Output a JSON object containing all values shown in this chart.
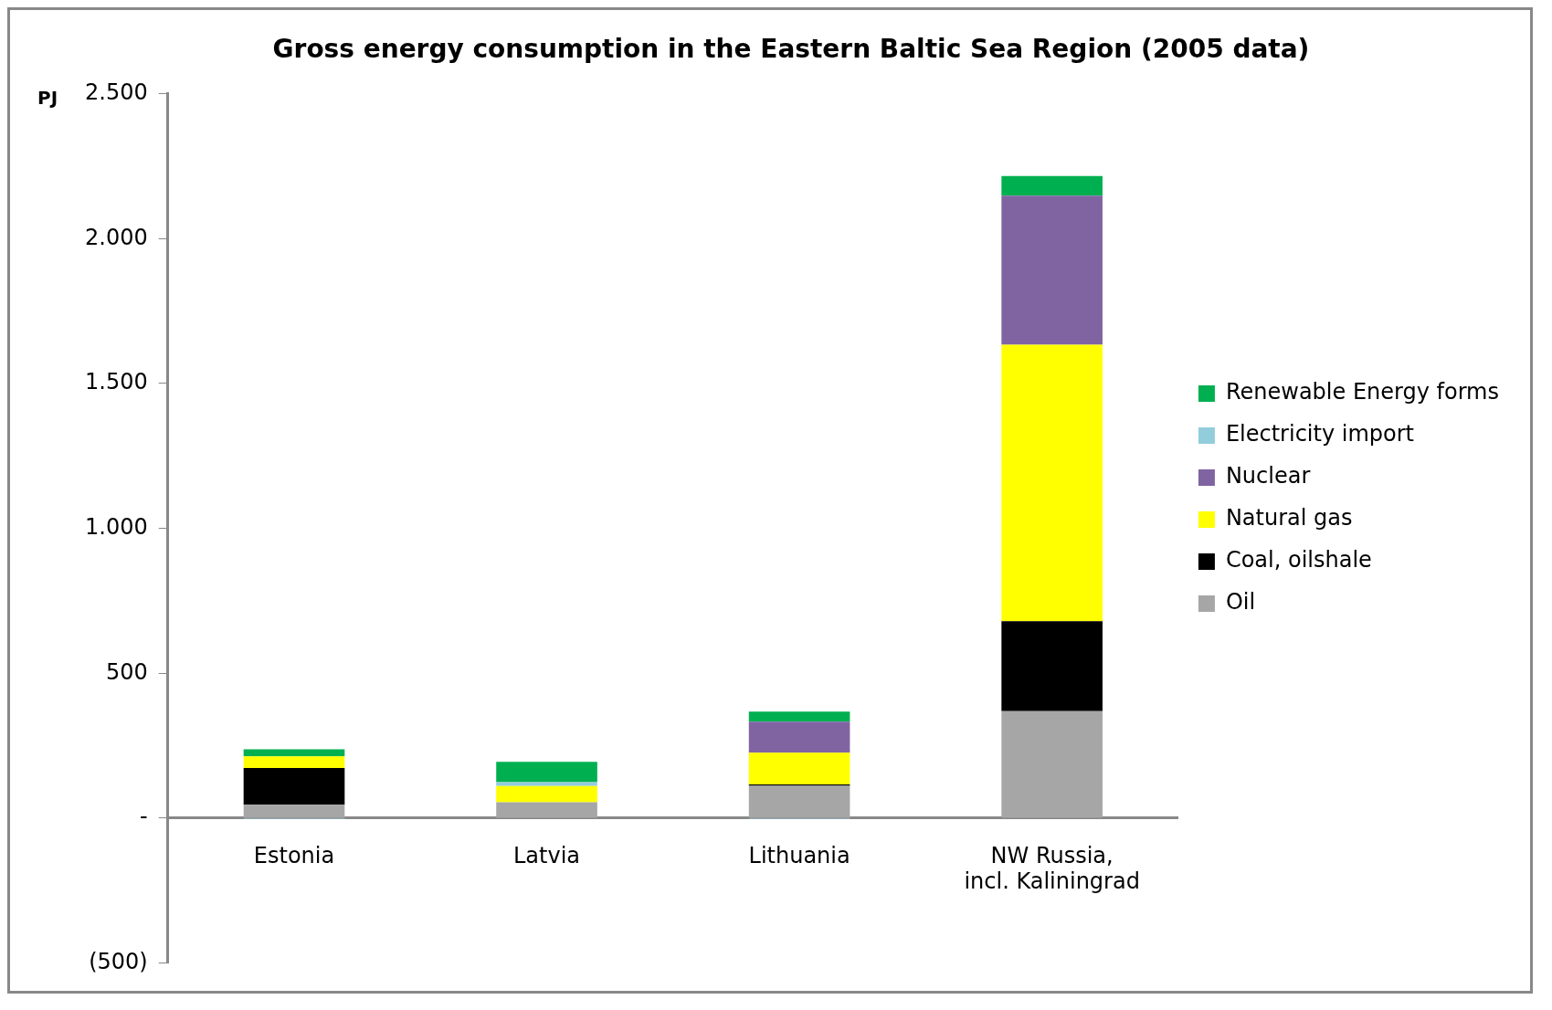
{
  "chart_data": {
    "type": "bar",
    "title": "Gross energy consumption in the Eastern Baltic Sea Region (2005 data)",
    "ylabel": "PJ",
    "stacked": true,
    "categories": [
      "Estonia",
      "Latvia",
      "Lithuania",
      "NW Russia, incl. Kaliningrad"
    ],
    "series": [
      {
        "name": "Oil",
        "color": "#a6a6a6",
        "values": [
          46,
          55,
          112,
          369
        ]
      },
      {
        "name": "Coal, oilshale",
        "color": "#000000",
        "values": [
          127,
          0,
          4,
          311
        ]
      },
      {
        "name": "Natural gas",
        "color": "#ffff00",
        "values": [
          40,
          56,
          110,
          954
        ]
      },
      {
        "name": "Nuclear",
        "color": "#8064a2",
        "values": [
          0,
          0,
          107,
          514
        ]
      },
      {
        "name": "Electricity import",
        "color": "#92cddc",
        "values": [
          -3,
          13,
          -3,
          0
        ]
      },
      {
        "name": "Renewable Energy forms",
        "color": "#00b050",
        "values": [
          25,
          70,
          35,
          68
        ]
      }
    ],
    "ylim": [
      -500,
      2500
    ],
    "yticks": [
      {
        "value": -500,
        "label": "(500)"
      },
      {
        "value": 0,
        "label": "-"
      },
      {
        "value": 500,
        "label": "500"
      },
      {
        "value": 1000,
        "label": "1.000"
      },
      {
        "value": 1500,
        "label": "1.500"
      },
      {
        "value": 2000,
        "label": "2.000"
      },
      {
        "value": 2500,
        "label": "2.500"
      }
    ],
    "grid": false,
    "legend": "right"
  }
}
